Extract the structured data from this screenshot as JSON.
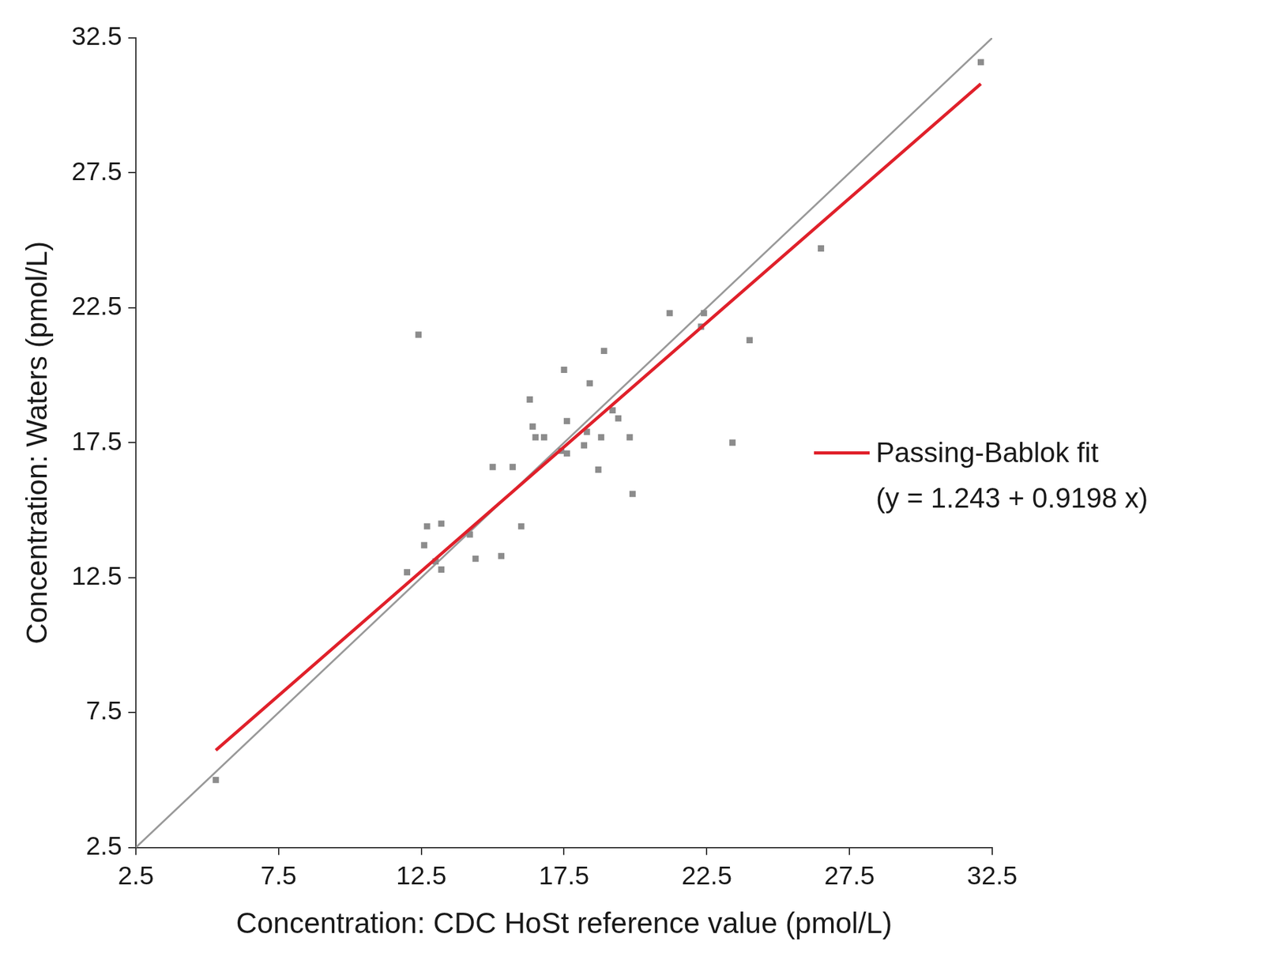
{
  "chart_data": {
    "type": "scatter",
    "x_label": "Concentration: CDC HoSt reference value (pmol/L)",
    "y_label": "Concentration: Waters (pmol/L)",
    "xlim": [
      2.5,
      32.5
    ],
    "ylim": [
      2.5,
      32.5
    ],
    "xticks": [
      2.5,
      7.5,
      12.5,
      17.5,
      22.5,
      27.5,
      32.5
    ],
    "yticks": [
      2.5,
      7.5,
      12.5,
      17.5,
      22.5,
      27.5,
      32.5
    ],
    "grid": false,
    "legend": "right",
    "annotations": [
      "(y = 1.243 + 0.9198 x)"
    ],
    "series": [
      {
        "type": "line",
        "color": "#999999",
        "line_style": "solid",
        "x": [
          2.5,
          32.5
        ],
        "values": [
          2.5,
          32.5
        ]
      },
      {
        "type": "scatter",
        "color": "#8c8c8c",
        "marker": "square",
        "x": [
          5.3,
          12.0,
          12.4,
          12.6,
          12.7,
          13.0,
          13.2,
          13.2,
          14.2,
          14.4,
          15.0,
          15.3,
          15.7,
          16.0,
          16.3,
          16.4,
          16.5,
          16.8,
          17.4,
          17.5,
          17.6,
          17.6,
          18.2,
          18.3,
          18.4,
          18.7,
          18.8,
          18.9,
          19.2,
          19.4,
          19.8,
          19.9,
          21.2,
          22.3,
          22.4,
          23.4,
          24.0,
          26.5,
          32.1
        ],
        "values": [
          5.0,
          12.7,
          21.5,
          13.7,
          14.4,
          13.1,
          14.5,
          12.8,
          14.1,
          13.2,
          16.6,
          13.3,
          16.6,
          14.4,
          19.1,
          18.1,
          17.7,
          17.7,
          17.2,
          20.2,
          18.3,
          17.1,
          17.4,
          17.9,
          19.7,
          16.5,
          17.7,
          20.9,
          18.7,
          18.4,
          17.7,
          15.6,
          22.3,
          21.8,
          22.3,
          17.5,
          21.3,
          24.7,
          31.6
        ]
      },
      {
        "name": "Passing-Bablok fit",
        "type": "line",
        "color": "#e0202a",
        "line_style": "solid",
        "x": [
          5.3,
          32.1
        ],
        "values": [
          6.1,
          30.8
        ]
      }
    ]
  }
}
